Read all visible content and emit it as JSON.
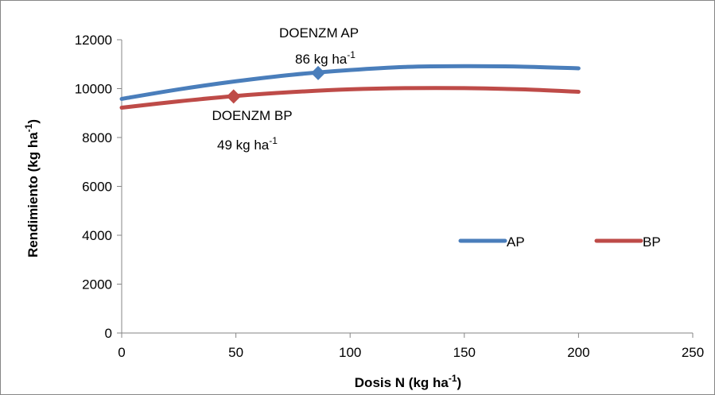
{
  "chart_data": {
    "type": "line",
    "xlabel": "Dosis N (kg ha",
    "xlabel_sup": "-1",
    "xlabel_tail": ")",
    "ylabel": "Rendimiento (kg ha",
    "ylabel_sup": "-1",
    "ylabel_tail": ")",
    "xlim": [
      0,
      250
    ],
    "ylim": [
      0,
      12000
    ],
    "xticks": [
      "0",
      "50",
      "100",
      "150",
      "200",
      "250"
    ],
    "yticks": [
      "0",
      "2000",
      "4000",
      "6000",
      "8000",
      "10000",
      "12000"
    ],
    "grid": false,
    "legend": "inside-bottom-right",
    "series": [
      {
        "name": "AP",
        "color": "#4a7ebb",
        "x": [
          0,
          25,
          50,
          75,
          100,
          125,
          150,
          175,
          200
        ],
        "y": [
          9580,
          9970,
          10300,
          10570,
          10760,
          10890,
          10920,
          10900,
          10830
        ]
      },
      {
        "name": "BP",
        "color": "#be4b48",
        "x": [
          0,
          25,
          50,
          75,
          100,
          125,
          150,
          175,
          200
        ],
        "y": [
          9220,
          9480,
          9700,
          9860,
          9970,
          10020,
          10020,
          9970,
          9870
        ]
      }
    ],
    "markers": [
      {
        "series": "AP",
        "x": 86,
        "y": 10640,
        "color": "#4a7ebb"
      },
      {
        "series": "BP",
        "x": 49,
        "y": 9680,
        "color": "#be4b48"
      }
    ],
    "annotations": [
      {
        "line1": "DOENZM AP",
        "line2": "86 kg ha",
        "sup": "-1"
      },
      {
        "line1": "DOENZM BP",
        "line2": "49 kg ha",
        "sup": "-1"
      }
    ]
  }
}
